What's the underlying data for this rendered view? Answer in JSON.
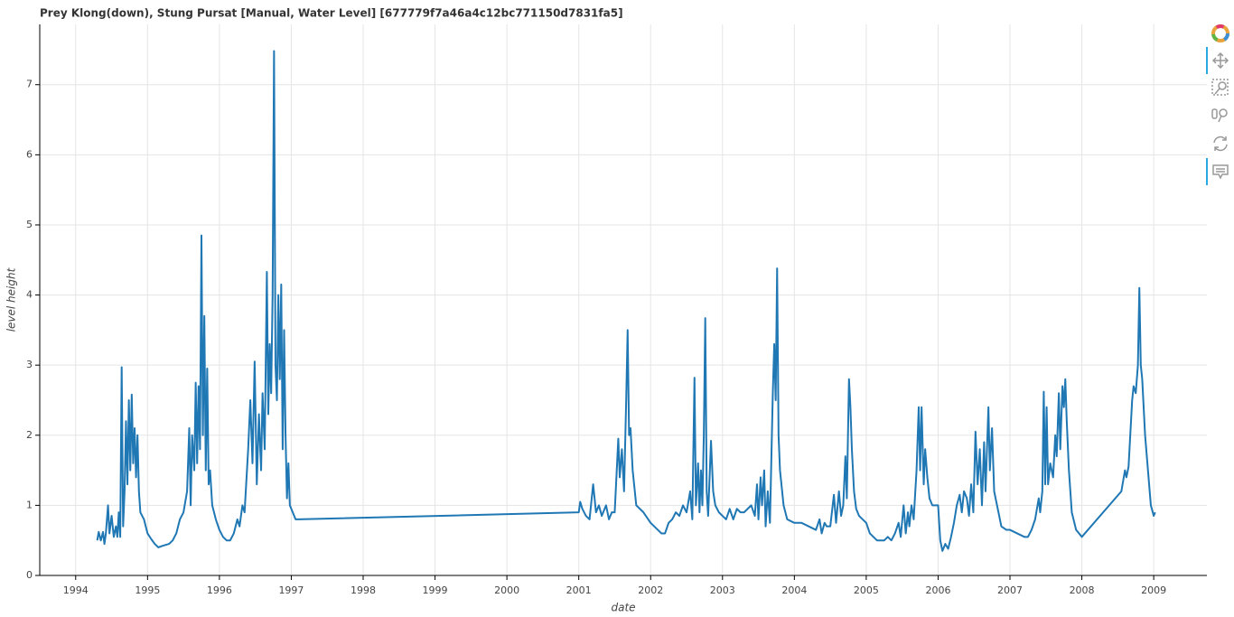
{
  "chart_data": {
    "type": "line",
    "title": "Prey Klong(down), Stung Pursat [Manual, Water Level] [677779f7a46a4c12bc771150d7831fa5]",
    "x_label": "date",
    "y_label": "level height",
    "grid": true,
    "xlim": [
      1993.5,
      2009.74
    ],
    "xticks": [
      1994,
      1995,
      1996,
      1997,
      1998,
      1999,
      2000,
      2001,
      2002,
      2003,
      2004,
      2005,
      2006,
      2007,
      2008,
      2009
    ],
    "ylim": [
      0,
      7.86
    ],
    "yticks": [
      0,
      1,
      2,
      3,
      4,
      5,
      6,
      7
    ],
    "series": [
      {
        "color": "#1f77b4",
        "x": [
          1994.3,
          1994.32,
          1994.35,
          1994.38,
          1994.4,
          1994.42,
          1994.45,
          1994.47,
          1994.5,
          1994.53,
          1994.56,
          1994.58,
          1994.6,
          1994.62,
          1994.64,
          1994.66,
          1994.68,
          1994.7,
          1994.72,
          1994.74,
          1994.76,
          1994.78,
          1994.8,
          1994.82,
          1994.84,
          1994.86,
          1994.88,
          1994.9,
          1994.95,
          1995.0,
          1995.05,
          1995.1,
          1995.15,
          1995.2,
          1995.3,
          1995.35,
          1995.4,
          1995.45,
          1995.5,
          1995.55,
          1995.58,
          1995.6,
          1995.62,
          1995.65,
          1995.67,
          1995.69,
          1995.71,
          1995.73,
          1995.75,
          1995.77,
          1995.79,
          1995.81,
          1995.83,
          1995.85,
          1995.87,
          1995.9,
          1995.95,
          1996.0,
          1996.05,
          1996.1,
          1996.15,
          1996.2,
          1996.25,
          1996.28,
          1996.32,
          1996.35,
          1996.4,
          1996.43,
          1996.46,
          1996.49,
          1996.52,
          1996.55,
          1996.58,
          1996.6,
          1996.63,
          1996.66,
          1996.68,
          1996.7,
          1996.72,
          1996.74,
          1996.76,
          1996.78,
          1996.8,
          1996.82,
          1996.84,
          1996.86,
          1996.88,
          1996.9,
          1996.92,
          1996.94,
          1996.96,
          1996.98,
          1997.02,
          1997.06,
          1997.1,
          2001.0,
          2001.02,
          2001.05,
          2001.1,
          2001.15,
          2001.2,
          2001.24,
          2001.28,
          2001.32,
          2001.38,
          2001.42,
          2001.46,
          2001.5,
          2001.55,
          2001.57,
          2001.6,
          2001.63,
          2001.66,
          2001.68,
          2001.7,
          2001.72,
          2001.75,
          2001.8,
          2001.85,
          2001.9,
          2002.0,
          2002.05,
          2002.1,
          2002.15,
          2002.2,
          2002.25,
          2002.3,
          2002.35,
          2002.4,
          2002.45,
          2002.5,
          2002.55,
          2002.58,
          2002.61,
          2002.63,
          2002.66,
          2002.68,
          2002.7,
          2002.72,
          2002.74,
          2002.76,
          2002.78,
          2002.8,
          2002.84,
          2002.87,
          2002.9,
          2002.95,
          2003.0,
          2003.05,
          2003.1,
          2003.15,
          2003.2,
          2003.25,
          2003.3,
          2003.35,
          2003.4,
          2003.45,
          2003.48,
          2003.5,
          2003.53,
          2003.55,
          2003.58,
          2003.6,
          2003.63,
          2003.66,
          2003.7,
          2003.72,
          2003.74,
          2003.76,
          2003.78,
          2003.8,
          2003.85,
          2003.9,
          2004.0,
          2004.1,
          2004.2,
          2004.3,
          2004.35,
          2004.38,
          2004.42,
          2004.45,
          2004.5,
          2004.55,
          2004.58,
          2004.62,
          2004.65,
          2004.68,
          2004.71,
          2004.73,
          2004.76,
          2004.78,
          2004.8,
          2004.83,
          2004.86,
          2004.9,
          2005.0,
          2005.05,
          2005.1,
          2005.15,
          2005.25,
          2005.3,
          2005.35,
          2005.4,
          2005.45,
          2005.48,
          2005.52,
          2005.55,
          2005.58,
          2005.6,
          2005.63,
          2005.66,
          2005.7,
          2005.73,
          2005.75,
          2005.77,
          2005.8,
          2005.82,
          2005.85,
          2005.88,
          2005.92,
          2006.0,
          2006.03,
          2006.06,
          2006.1,
          2006.14,
          2006.18,
          2006.22,
          2006.26,
          2006.3,
          2006.33,
          2006.36,
          2006.4,
          2006.43,
          2006.46,
          2006.49,
          2006.52,
          2006.55,
          2006.58,
          2006.61,
          2006.64,
          2006.66,
          2006.7,
          2006.72,
          2006.75,
          2006.78,
          2006.82,
          2006.88,
          2006.95,
          2007.0,
          2007.1,
          2007.2,
          2007.25,
          2007.3,
          2007.35,
          2007.4,
          2007.42,
          2007.45,
          2007.47,
          2007.49,
          2007.51,
          2007.53,
          2007.56,
          2007.6,
          2007.63,
          2007.65,
          2007.68,
          2007.7,
          2007.73,
          2007.75,
          2007.77,
          2007.79,
          2007.82,
          2007.86,
          2007.92,
          2008.0,
          2008.55,
          2008.6,
          2008.62,
          2008.65,
          2008.7,
          2008.72,
          2008.75,
          2008.78,
          2008.8,
          2008.82,
          2008.84,
          2008.88,
          2008.92,
          2008.96,
          2009.0,
          2009.02
        ],
        "values": [
          0.5,
          0.62,
          0.5,
          0.62,
          0.45,
          0.6,
          1.0,
          0.6,
          0.85,
          0.55,
          0.7,
          0.55,
          0.9,
          0.55,
          2.97,
          0.7,
          1.2,
          2.2,
          1.3,
          2.5,
          1.5,
          2.58,
          1.6,
          2.1,
          1.4,
          2.0,
          1.2,
          0.9,
          0.8,
          0.6,
          0.52,
          0.45,
          0.4,
          0.42,
          0.45,
          0.5,
          0.6,
          0.8,
          0.9,
          1.2,
          2.1,
          1.0,
          2.0,
          1.5,
          2.75,
          1.6,
          2.7,
          1.8,
          4.85,
          2.0,
          3.7,
          1.5,
          2.95,
          1.3,
          1.5,
          1.0,
          0.8,
          0.65,
          0.55,
          0.5,
          0.5,
          0.6,
          0.8,
          0.7,
          1.0,
          0.9,
          1.8,
          2.5,
          1.6,
          3.05,
          1.3,
          2.3,
          1.5,
          2.6,
          1.8,
          4.33,
          2.3,
          3.3,
          2.6,
          4.0,
          7.48,
          3.0,
          2.5,
          4.0,
          2.8,
          4.15,
          1.8,
          3.5,
          2.0,
          1.1,
          1.6,
          1.0,
          0.9,
          0.8,
          0.8,
          0.9,
          1.05,
          0.95,
          0.85,
          0.8,
          1.3,
          0.9,
          1.0,
          0.85,
          1.0,
          0.8,
          0.9,
          0.9,
          1.95,
          1.4,
          1.8,
          1.2,
          2.5,
          3.5,
          2.0,
          2.1,
          1.5,
          1.0,
          0.95,
          0.9,
          0.75,
          0.7,
          0.65,
          0.6,
          0.6,
          0.75,
          0.8,
          0.9,
          0.85,
          1.0,
          0.9,
          1.2,
          0.8,
          2.82,
          1.0,
          1.6,
          0.9,
          1.5,
          1.0,
          2.0,
          3.67,
          1.2,
          0.85,
          1.92,
          1.2,
          1.0,
          0.9,
          0.85,
          0.8,
          0.95,
          0.8,
          0.95,
          0.9,
          0.9,
          0.95,
          1.0,
          0.85,
          1.3,
          0.8,
          1.4,
          1.0,
          1.5,
          0.7,
          1.2,
          0.75,
          2.6,
          3.3,
          2.5,
          4.38,
          2.0,
          1.5,
          1.0,
          0.8,
          0.75,
          0.75,
          0.7,
          0.65,
          0.8,
          0.6,
          0.75,
          0.7,
          0.7,
          1.15,
          0.75,
          1.2,
          0.85,
          1.0,
          1.7,
          1.1,
          2.8,
          2.4,
          1.8,
          1.2,
          0.95,
          0.85,
          0.75,
          0.6,
          0.55,
          0.5,
          0.5,
          0.55,
          0.5,
          0.6,
          0.75,
          0.55,
          1.0,
          0.6,
          0.9,
          0.7,
          1.0,
          0.8,
          1.5,
          2.4,
          1.5,
          2.4,
          1.3,
          1.8,
          1.4,
          1.1,
          1.0,
          1.0,
          0.5,
          0.35,
          0.45,
          0.38,
          0.55,
          0.75,
          1.0,
          1.15,
          0.9,
          1.2,
          1.1,
          0.85,
          1.3,
          0.9,
          2.05,
          1.3,
          1.8,
          1.0,
          1.9,
          1.2,
          2.4,
          1.5,
          2.1,
          1.2,
          1.0,
          0.7,
          0.65,
          0.65,
          0.6,
          0.55,
          0.55,
          0.65,
          0.8,
          1.1,
          0.9,
          1.2,
          2.62,
          1.3,
          2.4,
          1.3,
          1.6,
          1.4,
          2.0,
          1.7,
          2.6,
          1.8,
          2.7,
          2.4,
          2.8,
          2.2,
          1.5,
          0.9,
          0.65,
          0.55,
          1.2,
          1.5,
          1.4,
          1.55,
          2.5,
          2.7,
          2.6,
          3.0,
          4.1,
          3.0,
          2.8,
          2.0,
          1.5,
          1.0,
          0.85,
          0.9
        ]
      }
    ]
  }
}
